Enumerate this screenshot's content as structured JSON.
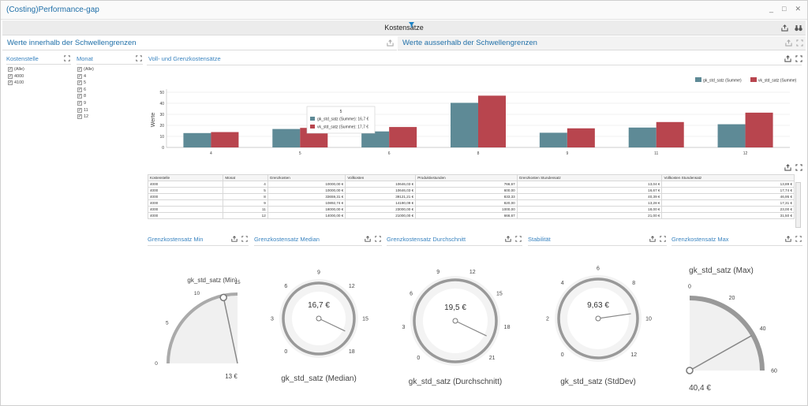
{
  "window": {
    "title": "(Costing)Performance-gap",
    "buttons": [
      "_",
      "□",
      "✕"
    ]
  },
  "filterbar": {
    "label": "Kostensätze"
  },
  "left_panel": {
    "title": "Werte innerhalb der Schwellengrenzen"
  },
  "right_panel": {
    "title": "Werte ausserhalb der Schwellengrenzen"
  },
  "kostenstelle": {
    "title": "Kostenstelle",
    "items": [
      "(Alle)",
      "4000",
      "4100"
    ]
  },
  "monat": {
    "title": "Monat",
    "items": [
      "(Alle)",
      "4",
      "5",
      "6",
      "8",
      "9",
      "11",
      "12"
    ]
  },
  "chart_data": [
    {
      "type": "bar",
      "title": "Voll- und Grenzkostensätze",
      "ylabel": "Werte",
      "xlabel": "",
      "categories": [
        "4",
        "5",
        "6",
        "8",
        "9",
        "11",
        "12"
      ],
      "series": [
        {
          "name": "gk_std_satz (Summe)",
          "color": "#5e8a96",
          "values": [
            13,
            16.7,
            14.5,
            40.4,
            13.3,
            18,
            21
          ]
        },
        {
          "name": "vk_std_satz (Summe)",
          "color": "#b8454e",
          "values": [
            13.9,
            17.7,
            18.5,
            46.9,
            17.3,
            23,
            31.5
          ]
        }
      ],
      "ylim": [
        0,
        50
      ],
      "yticks": [
        "0",
        "10",
        "20",
        "30",
        "40",
        "50"
      ],
      "legend": "top-right",
      "tooltip": {
        "title": "5",
        "lines": [
          "gk_std_satz (Summe): 16,7 €",
          "vk_std_satz (Summe): 17,7 €"
        ]
      }
    }
  ],
  "table": {
    "columns": [
      "Kostenstelle",
      "Monat",
      "Grenzkosten",
      "Vollkosten",
      "Produktivstunden",
      "Grenzkosten Stundensatz",
      "Vollkosten Stundensatz"
    ],
    "rows": [
      [
        "4000",
        "4",
        "10000,00 €",
        "10646,03 €",
        "766,67",
        "13,04 €",
        "13,89 €"
      ],
      [
        "4000",
        "5",
        "10000,00 €",
        "10646,03 €",
        "600,00",
        "16,67 €",
        "17,74 €"
      ],
      [
        "4000",
        "8",
        "33659,31 €",
        "39121,21 €",
        "833,33",
        "40,39 €",
        "46,95 €"
      ],
      [
        "4000",
        "9",
        "10892,74 €",
        "14190,09 €",
        "820,00",
        "13,28 €",
        "17,31 €"
      ],
      [
        "4000",
        "11",
        "18000,00 €",
        "23000,00 €",
        "1000,00",
        "18,00 €",
        "23,00 €"
      ],
      [
        "4000",
        "12",
        "14000,00 €",
        "21000,00 €",
        "666,67",
        "21,00 €",
        "31,50 €"
      ]
    ]
  },
  "gauges": [
    {
      "tile": "Grenzkostensatz Min",
      "label": "gk_std_satz (Min)",
      "value_text": "13 €",
      "value": 13,
      "min": 0,
      "max": 15,
      "ticks": [
        "0",
        "5",
        "10",
        "15"
      ]
    },
    {
      "tile": "Grenzkostensatz Median",
      "label": "gk_std_satz (Median)",
      "value_text": "16,7 €",
      "value": 16.7,
      "min": 0,
      "max": 18,
      "ticks": [
        "0",
        "3",
        "6",
        "9",
        "12",
        "15",
        "18"
      ]
    },
    {
      "tile": "Grenzkostensatz Durchschnitt",
      "label": "gk_std_satz (Durchschnitt)",
      "value_text": "19,5 €",
      "value": 19.5,
      "min": 0,
      "max": 21,
      "ticks": [
        "0",
        "3",
        "6",
        "9",
        "12",
        "15",
        "18",
        "21"
      ]
    },
    {
      "tile": "Stabilität",
      "label": "gk_std_satz (StdDev)",
      "value_text": "9,63 €",
      "value": 9.63,
      "min": 0,
      "max": 12,
      "ticks": [
        "0",
        "2",
        "4",
        "6",
        "8",
        "10",
        "12"
      ]
    },
    {
      "tile": "Grenzkostensatz Max",
      "label": "gk_std_satz (Max)",
      "value_text": "40,4 €",
      "value": 40.4,
      "min": 0,
      "max": 60,
      "ticks": [
        "0",
        "20",
        "40",
        "60"
      ]
    }
  ],
  "icons": {
    "export": "export-icon",
    "maximize": "maximize-icon",
    "filter": "filter-icon",
    "binoculars": "binoculars-icon"
  }
}
